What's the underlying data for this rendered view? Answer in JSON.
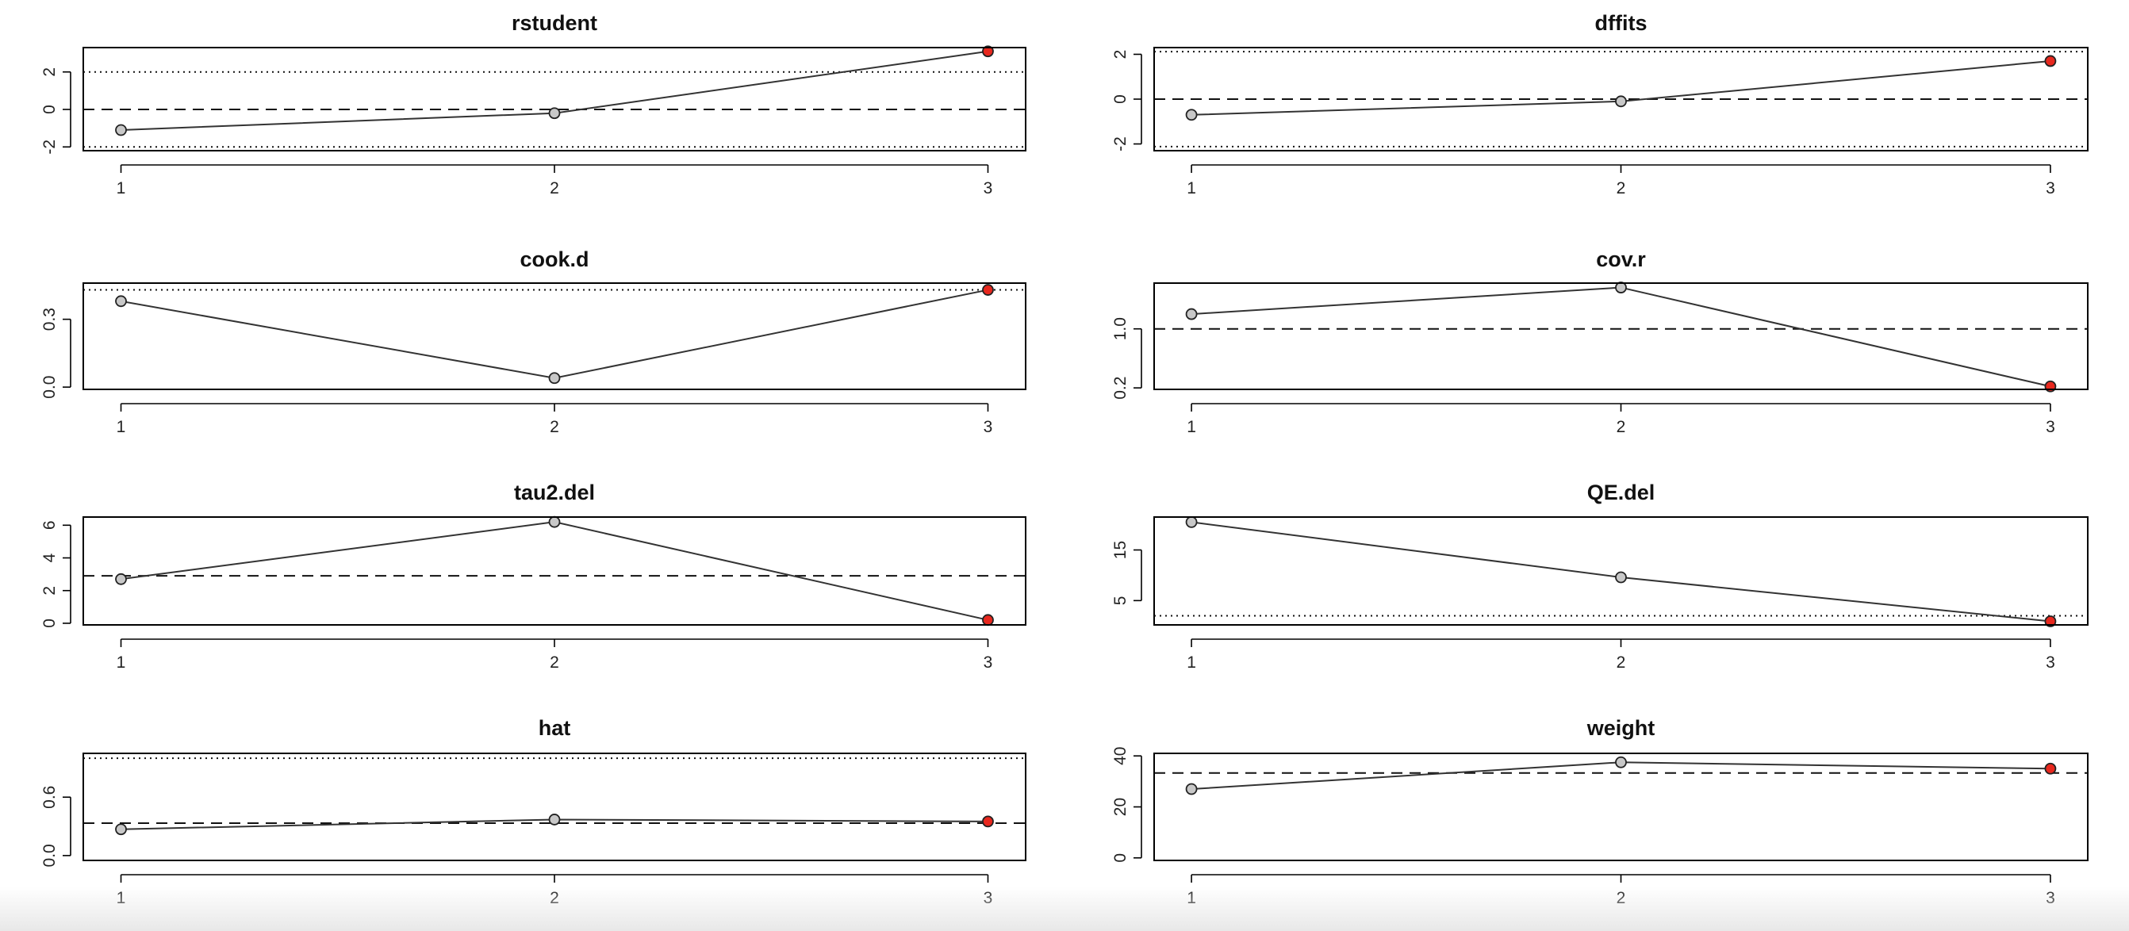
{
  "chart_data": [
    {
      "type": "line",
      "title": "rstudent",
      "x": [
        1,
        2,
        3
      ],
      "xticks": [
        "1",
        "2",
        "3"
      ],
      "values": [
        -1.1,
        -0.2,
        3.1
      ],
      "ylim": [
        -2.2,
        3.3
      ],
      "yticks": [
        {
          "v": -2,
          "label": "-2"
        },
        {
          "v": 0,
          "label": "0"
        },
        {
          "v": 2,
          "label": "2"
        }
      ],
      "ref_lines": [
        {
          "y": -2,
          "style": "dotted"
        },
        {
          "y": 0,
          "style": "dashed"
        },
        {
          "y": 2,
          "style": "dotted"
        }
      ],
      "highlight": [
        3
      ],
      "grid": false
    },
    {
      "type": "line",
      "title": "dffits",
      "x": [
        1,
        2,
        3
      ],
      "xticks": [
        "1",
        "2",
        "3"
      ],
      "values": [
        -0.7,
        -0.1,
        1.7
      ],
      "ylim": [
        -2.3,
        2.3
      ],
      "yticks": [
        {
          "v": -2,
          "label": "-2"
        },
        {
          "v": 0,
          "label": "0"
        },
        {
          "v": 2,
          "label": "2"
        }
      ],
      "ref_lines": [
        {
          "y": -2.12,
          "style": "dotted"
        },
        {
          "y": 0,
          "style": "dashed"
        },
        {
          "y": 2.12,
          "style": "dotted"
        }
      ],
      "highlight": [
        3
      ],
      "grid": false
    },
    {
      "type": "line",
      "title": "cook.d",
      "x": [
        1,
        2,
        3
      ],
      "xticks": [
        "1",
        "2",
        "3"
      ],
      "values": [
        0.38,
        0.04,
        0.43
      ],
      "ylim": [
        -0.01,
        0.46
      ],
      "yticks": [
        {
          "v": 0.0,
          "label": "0.0"
        },
        {
          "v": 0.3,
          "label": "0.3"
        }
      ],
      "ref_lines": [
        {
          "y": 0.43,
          "style": "dotted"
        }
      ],
      "highlight": [
        3
      ],
      "grid": false
    },
    {
      "type": "line",
      "title": "cov.r",
      "x": [
        1,
        2,
        3
      ],
      "xticks": [
        "1",
        "2",
        "3"
      ],
      "values": [
        1.2,
        1.56,
        0.22
      ],
      "ylim": [
        0.18,
        1.62
      ],
      "yticks": [
        {
          "v": 0.2,
          "label": "0.2"
        },
        {
          "v": 1.0,
          "label": "1.0"
        }
      ],
      "ref_lines": [
        {
          "y": 1.0,
          "style": "dashed"
        }
      ],
      "highlight": [
        3
      ],
      "grid": false
    },
    {
      "type": "line",
      "title": "tau2.del",
      "x": [
        1,
        2,
        3
      ],
      "xticks": [
        "1",
        "2",
        "3"
      ],
      "values": [
        2.7,
        6.2,
        0.2
      ],
      "ylim": [
        -0.1,
        6.5
      ],
      "yticks": [
        {
          "v": 0,
          "label": "0"
        },
        {
          "v": 2,
          "label": "2"
        },
        {
          "v": 4,
          "label": "4"
        },
        {
          "v": 6,
          "label": "6"
        }
      ],
      "ref_lines": [
        {
          "y": 2.9,
          "style": "dashed"
        }
      ],
      "highlight": [
        3
      ],
      "grid": false
    },
    {
      "type": "line",
      "title": "QE.del",
      "x": [
        1,
        2,
        3
      ],
      "xticks": [
        "1",
        "2",
        "3"
      ],
      "values": [
        20.5,
        9.6,
        0.9
      ],
      "ylim": [
        0.2,
        21.5
      ],
      "yticks": [
        {
          "v": 5,
          "label": "5"
        },
        {
          "v": 15,
          "label": "15"
        }
      ],
      "ref_lines": [
        {
          "y": 2.0,
          "style": "dotted"
        }
      ],
      "highlight": [
        3
      ],
      "grid": false
    },
    {
      "type": "line",
      "title": "hat",
      "x": [
        1,
        2,
        3
      ],
      "xticks": [
        "1",
        "2",
        "3"
      ],
      "values": [
        0.27,
        0.37,
        0.35
      ],
      "ylim": [
        -0.05,
        1.05
      ],
      "yticks": [
        {
          "v": 0.0,
          "label": "0.0"
        },
        {
          "v": 0.6,
          "label": "0.6"
        }
      ],
      "ref_lines": [
        {
          "y": 1.0,
          "style": "dotted"
        },
        {
          "y": 0.333,
          "style": "dashed"
        }
      ],
      "highlight": [
        3
      ],
      "grid": false
    },
    {
      "type": "line",
      "title": "weight",
      "x": [
        1,
        2,
        3
      ],
      "xticks": [
        "1",
        "2",
        "3"
      ],
      "values": [
        27,
        37.5,
        35
      ],
      "ylim": [
        -1,
        41
      ],
      "yticks": [
        {
          "v": 0,
          "label": "0"
        },
        {
          "v": 20,
          "label": "20"
        },
        {
          "v": 40,
          "label": "40"
        }
      ],
      "ref_lines": [
        {
          "y": 33.3,
          "style": "dashed"
        }
      ],
      "highlight": [
        3
      ],
      "grid": false
    }
  ],
  "colors": {
    "point": "#c8c8c8",
    "highlight": "#e8281e",
    "line": "#333333",
    "axis": "#000000",
    "background": "#ffffff"
  }
}
